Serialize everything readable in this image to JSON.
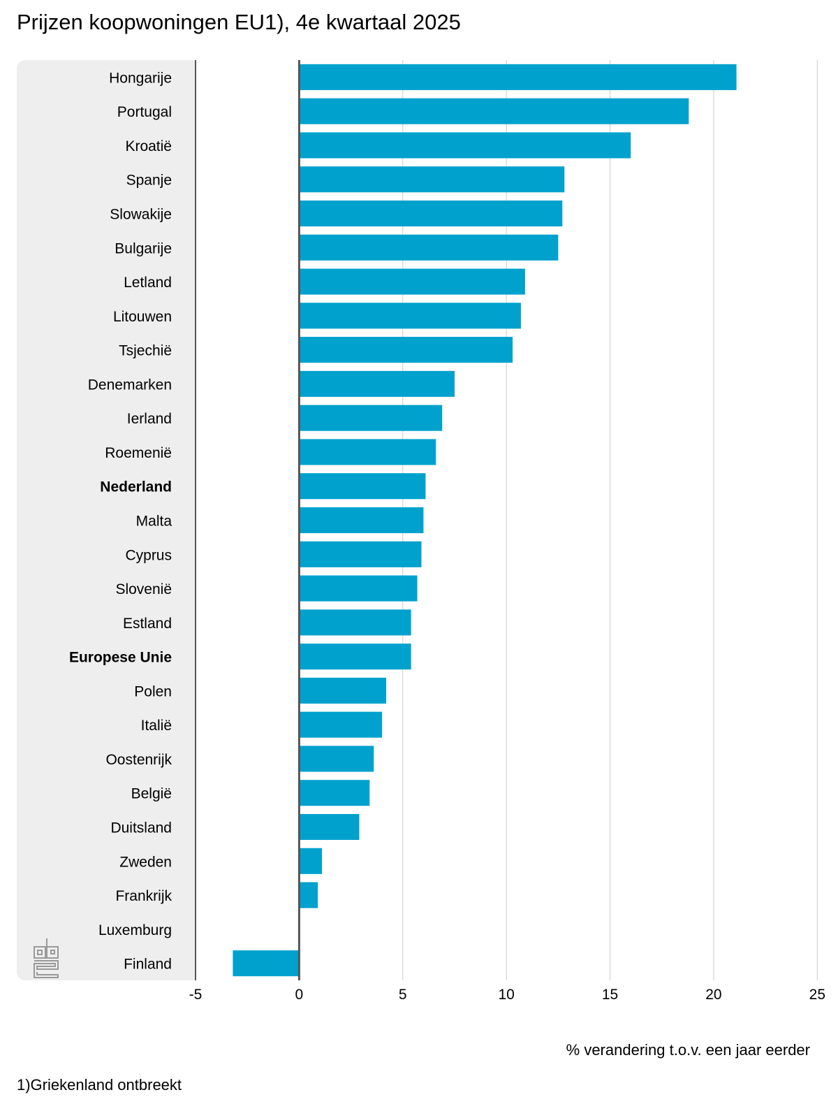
{
  "title": "Prijzen koopwoningen EU1), 4e kwartaal 2025",
  "footnote": "1)Griekenland ontbreekt",
  "logo": "cbs-logo",
  "colors": {
    "bar": "#00a1cd",
    "panel": "#eeeeee",
    "grid": "#cccccc",
    "axis": "#555555"
  },
  "chart_data": {
    "type": "bar",
    "orientation": "horizontal",
    "xlabel": "% verandering t.o.v. een jaar eerder",
    "xlim": [
      -5,
      26
    ],
    "xticks": [
      -5,
      0,
      5,
      10,
      15,
      20,
      25
    ],
    "grid": true,
    "categories": [
      "Hongarije",
      "Portugal",
      "Kroatië",
      "Spanje",
      "Slowakije",
      "Bulgarije",
      "Letland",
      "Litouwen",
      "Tsjechië",
      "Denemarken",
      "Ierland",
      "Roemenië",
      "Nederland",
      "Malta",
      "Cyprus",
      "Slovenië",
      "Estland",
      "Europese Unie",
      "Polen",
      "Italië",
      "Oostenrijk",
      "België",
      "Duitsland",
      "Zweden",
      "Frankrijk",
      "Luxemburg",
      "Finland"
    ],
    "values": [
      21.1,
      18.8,
      16.0,
      12.8,
      12.7,
      12.5,
      10.9,
      10.7,
      10.3,
      7.5,
      6.9,
      6.6,
      6.1,
      6.0,
      5.9,
      5.7,
      5.4,
      5.4,
      4.2,
      4.0,
      3.6,
      3.4,
      2.9,
      1.1,
      0.9,
      0.0,
      -3.2
    ],
    "highlighted": [
      "Nederland",
      "Europese Unie"
    ]
  }
}
